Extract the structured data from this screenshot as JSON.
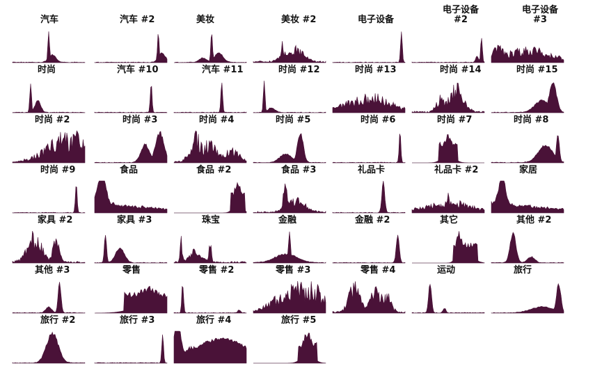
{
  "chart_data": {
    "type": "area",
    "layout": "small-multiples grid, 7 columns x 7 rows",
    "colors": {
      "fill": "#4a1238",
      "baseline": "#c9c9c9"
    },
    "xlabel": "",
    "ylabel": "",
    "grid": false,
    "legend": "none",
    "panels": [
      {
        "title": "汽车",
        "shape": "spike",
        "peaks": [
          [
            0.5,
            1.0,
            0.012
          ],
          [
            0.55,
            0.25,
            0.05
          ]
        ]
      },
      {
        "title": "汽车 #2",
        "shape": "late",
        "peaks": [
          [
            0.88,
            1.0,
            0.012
          ],
          [
            0.93,
            0.3,
            0.05
          ]
        ]
      },
      {
        "title": "美妆",
        "shape": "spike",
        "peaks": [
          [
            0.52,
            1.0,
            0.012
          ],
          [
            0.62,
            0.3,
            0.06
          ],
          [
            0.4,
            0.15,
            0.05
          ]
        ]
      },
      {
        "title": "美妆 #2",
        "shape": "noisy",
        "peaks": [
          [
            0.4,
            0.95,
            0.015
          ],
          [
            0.55,
            0.6,
            0.12
          ]
        ]
      },
      {
        "title": "电子设备",
        "shape": "late",
        "peaks": [
          [
            0.95,
            1.0,
            0.012
          ]
        ]
      },
      {
        "title": "电子设备\n#2",
        "shape": "late",
        "peaks": [
          [
            0.96,
            0.8,
            0.012
          ],
          [
            0.9,
            0.2,
            0.02
          ]
        ]
      },
      {
        "title": "电子设备\n#3",
        "shape": "noisy",
        "peaks": [
          [
            0.1,
            0.6,
            0.08
          ],
          [
            0.5,
            0.5,
            0.3
          ]
        ]
      },
      {
        "title": "时尚",
        "shape": "spike",
        "peaks": [
          [
            0.25,
            1.0,
            0.012
          ],
          [
            0.35,
            0.4,
            0.04
          ]
        ]
      },
      {
        "title": "汽车 #10",
        "shape": "late",
        "peaks": [
          [
            0.78,
            1.0,
            0.012
          ]
        ]
      },
      {
        "title": "汽车 #11",
        "shape": "late",
        "peaks": [
          [
            0.66,
            1.0,
            0.012
          ]
        ]
      },
      {
        "title": "时尚 #12",
        "shape": "spike",
        "peaks": [
          [
            0.15,
            1.0,
            0.012
          ],
          [
            0.25,
            0.15,
            0.05
          ]
        ]
      },
      {
        "title": "时尚 #13",
        "shape": "noisy",
        "peaks": [
          [
            0.5,
            0.6,
            0.3
          ]
        ]
      },
      {
        "title": "时尚 #14",
        "shape": "noisy",
        "peaks": [
          [
            0.6,
            1.0,
            0.1
          ],
          [
            0.4,
            0.6,
            0.06
          ]
        ]
      },
      {
        "title": "时尚 #15",
        "shape": "late",
        "peaks": [
          [
            0.85,
            1.0,
            0.05
          ],
          [
            0.7,
            0.4,
            0.1
          ]
        ]
      },
      {
        "title": "时尚 #2",
        "shape": "ramp",
        "peaks": [
          [
            0.8,
            1.0,
            0.3
          ]
        ]
      },
      {
        "title": "时尚 #3",
        "shape": "late",
        "peaks": [
          [
            0.9,
            1.0,
            0.06
          ],
          [
            0.7,
            0.6,
            0.06
          ]
        ]
      },
      {
        "title": "时尚 #4",
        "shape": "noisy",
        "peaks": [
          [
            0.3,
            1.0,
            0.08
          ],
          [
            0.5,
            0.8,
            0.1
          ],
          [
            0.8,
            0.5,
            0.1
          ]
        ]
      },
      {
        "title": "时尚 #5",
        "shape": "spike",
        "peaks": [
          [
            0.65,
            1.0,
            0.04
          ],
          [
            0.45,
            0.3,
            0.08
          ]
        ]
      },
      {
        "title": "时尚 #6",
        "shape": "late",
        "peaks": [
          [
            0.93,
            1.0,
            0.012
          ]
        ]
      },
      {
        "title": "时尚 #7",
        "shape": "block",
        "peaks": [
          [
            0.5,
            0.9,
            0.08
          ]
        ]
      },
      {
        "title": "时尚 #8",
        "shape": "late",
        "peaks": [
          [
            0.92,
            1.0,
            0.02
          ],
          [
            0.75,
            0.6,
            0.1
          ]
        ]
      },
      {
        "title": "时尚 #9",
        "shape": "late",
        "peaks": [
          [
            0.88,
            1.0,
            0.012
          ]
        ]
      },
      {
        "title": "食品",
        "shape": "decay",
        "peaks": [
          [
            0.1,
            1.0,
            0.05
          ]
        ]
      },
      {
        "title": "食品 #2",
        "shape": "block",
        "peaks": [
          [
            0.88,
            1.0,
            0.06
          ]
        ]
      },
      {
        "title": "食品 #3",
        "shape": "noisy",
        "peaks": [
          [
            0.45,
            1.0,
            0.04
          ],
          [
            0.6,
            0.5,
            0.12
          ]
        ]
      },
      {
        "title": "礼品卡",
        "shape": "spike",
        "peaks": [
          [
            0.7,
            1.0,
            0.02
          ]
        ]
      },
      {
        "title": "礼品卡 #2",
        "shape": "noisy",
        "peaks": [
          [
            0.5,
            1.0,
            0.02
          ],
          [
            0.5,
            0.4,
            0.3
          ]
        ]
      },
      {
        "title": "家居",
        "shape": "decay",
        "peaks": [
          [
            0.15,
            1.0,
            0.04
          ]
        ]
      },
      {
        "title": "家具 #2",
        "shape": "noisy",
        "peaks": [
          [
            0.3,
            1.0,
            0.1
          ],
          [
            0.6,
            0.8,
            0.05
          ]
        ]
      },
      {
        "title": "家具 #3",
        "shape": "spike",
        "peaks": [
          [
            0.15,
            1.0,
            0.015
          ],
          [
            0.35,
            0.5,
            0.06
          ]
        ]
      },
      {
        "title": "珠宝",
        "shape": "noisy",
        "peaks": [
          [
            0.1,
            1.0,
            0.015
          ],
          [
            0.5,
            0.8,
            0.015
          ],
          [
            0.3,
            0.5,
            0.08
          ]
        ]
      },
      {
        "title": "金融",
        "shape": "spike",
        "peaks": [
          [
            0.5,
            1.0,
            0.015
          ],
          [
            0.45,
            0.3,
            0.15
          ]
        ]
      },
      {
        "title": "金融 #2",
        "shape": "line",
        "peaks": [
          [
            0.9,
            1.0,
            0.02
          ]
        ]
      },
      {
        "title": "其它",
        "shape": "block",
        "peaks": [
          [
            0.65,
            1.0,
            0.05
          ],
          [
            0.8,
            0.6,
            0.08
          ]
        ]
      },
      {
        "title": "其他 #2",
        "shape": "spike",
        "peaks": [
          [
            0.3,
            1.0,
            0.04
          ],
          [
            0.55,
            0.2,
            0.05
          ]
        ]
      },
      {
        "title": "其他 #3",
        "shape": "spike",
        "peaks": [
          [
            0.65,
            1.0,
            0.02
          ],
          [
            0.5,
            0.2,
            0.04
          ]
        ]
      },
      {
        "title": "零售",
        "shape": "block",
        "peaks": [
          [
            0.75,
            0.85,
            0.22
          ]
        ]
      },
      {
        "title": "零售 #2",
        "shape": "spike",
        "peaks": [
          [
            0.12,
            1.0,
            0.012
          ],
          [
            0.9,
            0.1,
            0.02
          ]
        ]
      },
      {
        "title": "零售 #3",
        "shape": "ramp",
        "peaks": [
          [
            0.7,
            1.0,
            0.35
          ]
        ]
      },
      {
        "title": "零售 #4",
        "shape": "noisy",
        "peaks": [
          [
            0.3,
            1.0,
            0.08
          ],
          [
            0.6,
            0.9,
            0.08
          ],
          [
            0.75,
            0.7,
            0.06
          ]
        ]
      },
      {
        "title": "运动",
        "shape": "spike",
        "peaks": [
          [
            0.25,
            1.0,
            0.02
          ],
          [
            0.45,
            0.15,
            0.02
          ]
        ]
      },
      {
        "title": "旅行",
        "shape": "late",
        "peaks": [
          [
            0.93,
            1.0,
            0.03
          ],
          [
            0.7,
            0.2,
            0.15
          ]
        ]
      },
      {
        "title": "旅行 #2",
        "shape": "line",
        "peaks": [
          [
            0.55,
            1.0,
            0.08
          ]
        ]
      },
      {
        "title": "旅行 #3",
        "shape": "late",
        "peaks": [
          [
            0.94,
            1.0,
            0.012
          ]
        ]
      },
      {
        "title": "旅行 #4",
        "shape": "decay",
        "peaks": [
          [
            0.05,
            1.0,
            0.04
          ],
          [
            0.7,
            0.6,
            0.3
          ]
        ]
      },
      {
        "title": "旅行 #5",
        "shape": "block",
        "peaks": [
          [
            0.75,
            1.0,
            0.08
          ]
        ]
      }
    ]
  }
}
